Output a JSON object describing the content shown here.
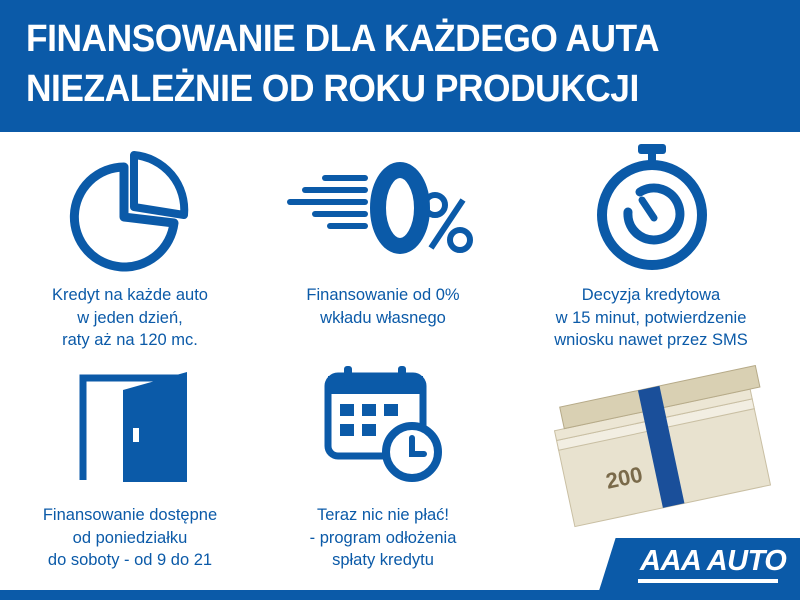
{
  "header": {
    "line1": "FINANSOWANIE DLA KAŻDEGO AUTA",
    "line2": "NIEZALEŻNIE OD ROKU PRODUKCJI"
  },
  "features": [
    {
      "icon": "pie-chart-icon",
      "lines": [
        "Kredyt na każde auto",
        "w jeden dzień,",
        "raty aż na 120 mc."
      ]
    },
    {
      "icon": "zero-percent-icon",
      "lines": [
        "Finansowanie od 0%",
        "wkładu własnego"
      ]
    },
    {
      "icon": "stopwatch-icon",
      "lines": [
        "Decyzja kredytowa",
        "w 15 minut, potwierdzenie",
        "wniosku nawet przez SMS"
      ]
    },
    {
      "icon": "door-icon",
      "lines": [
        "Finansowanie dostępne",
        "od poniedziałku",
        "do soboty - od 9 do 21"
      ]
    },
    {
      "icon": "calendar-clock-icon",
      "lines": [
        "Teraz nic nie płać!",
        "- program odłożenia",
        "spłaty kredytu"
      ]
    }
  ],
  "logo": "AAA AUTO",
  "colors": {
    "brand": "#0b5aa8"
  }
}
